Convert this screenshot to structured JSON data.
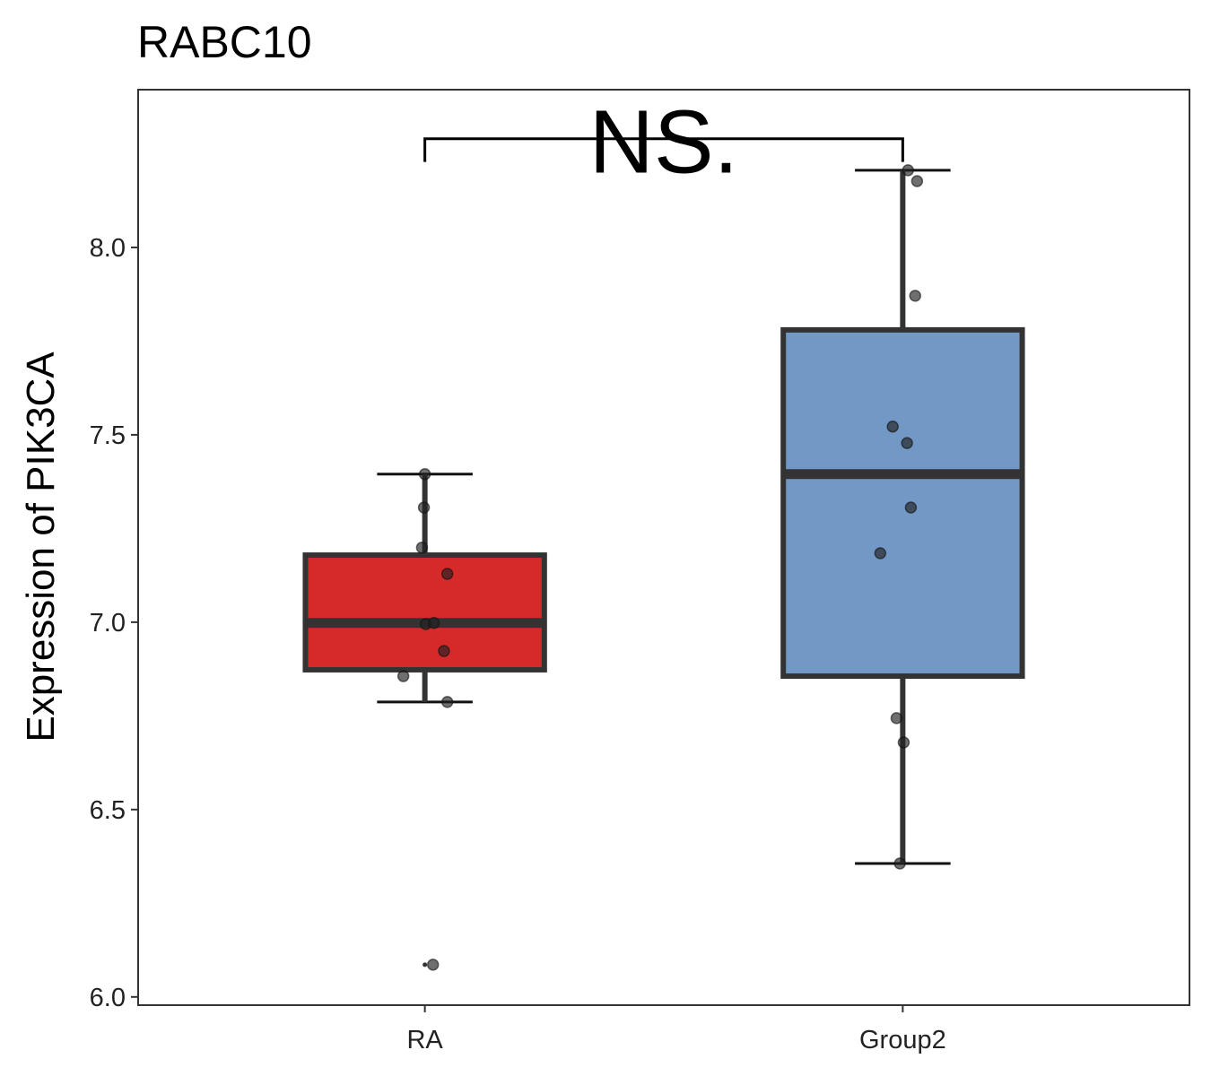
{
  "chart_data": {
    "type": "boxplot",
    "title": "RABC10",
    "xlabel": "",
    "ylabel": "Expression of PIK3CA",
    "ylim": [
      5.978,
      8.421
    ],
    "yticks": [
      6.0,
      6.5,
      7.0,
      7.5,
      8.0
    ],
    "ytick_labels": [
      "6.0",
      "6.5",
      "7.0",
      "7.5",
      "8.0"
    ],
    "categories": [
      "RA",
      "Group2"
    ],
    "grid": false,
    "legend": "none",
    "annotation": {
      "label": "NS.",
      "from": "RA",
      "to": "Group2",
      "y": 8.29,
      "tick_bottom": 8.228
    },
    "series": [
      {
        "name": "RA",
        "color": "#D62A2A",
        "q1": 6.873,
        "median": 6.998,
        "q3": 7.179,
        "whisker_low": 6.787,
        "whisker_high": 7.395,
        "outliers": [
          6.086
        ],
        "points": [
          [
            0.0,
            7.395
          ],
          [
            -0.002,
            7.306
          ],
          [
            -0.006,
            7.199
          ],
          [
            0.047,
            7.129
          ],
          [
            0.002,
            6.995
          ],
          [
            0.019,
            6.998
          ],
          [
            0.04,
            6.923
          ],
          [
            -0.045,
            6.856
          ],
          [
            0.047,
            6.787
          ],
          [
            0.017,
            6.086
          ]
        ]
      },
      {
        "name": "Group2",
        "color": "#7299C6",
        "q1": 6.856,
        "median": 7.395,
        "q3": 7.78,
        "whisker_low": 6.356,
        "whisker_high": 8.206,
        "outliers": [],
        "points": [
          [
            0.011,
            8.206
          ],
          [
            0.03,
            8.177
          ],
          [
            0.026,
            7.871
          ],
          [
            -0.021,
            7.522
          ],
          [
            0.009,
            7.478
          ],
          [
            0.017,
            7.306
          ],
          [
            -0.047,
            7.184
          ],
          [
            -0.013,
            6.744
          ],
          [
            0.002,
            6.679
          ],
          [
            -0.006,
            6.356
          ]
        ]
      }
    ]
  }
}
